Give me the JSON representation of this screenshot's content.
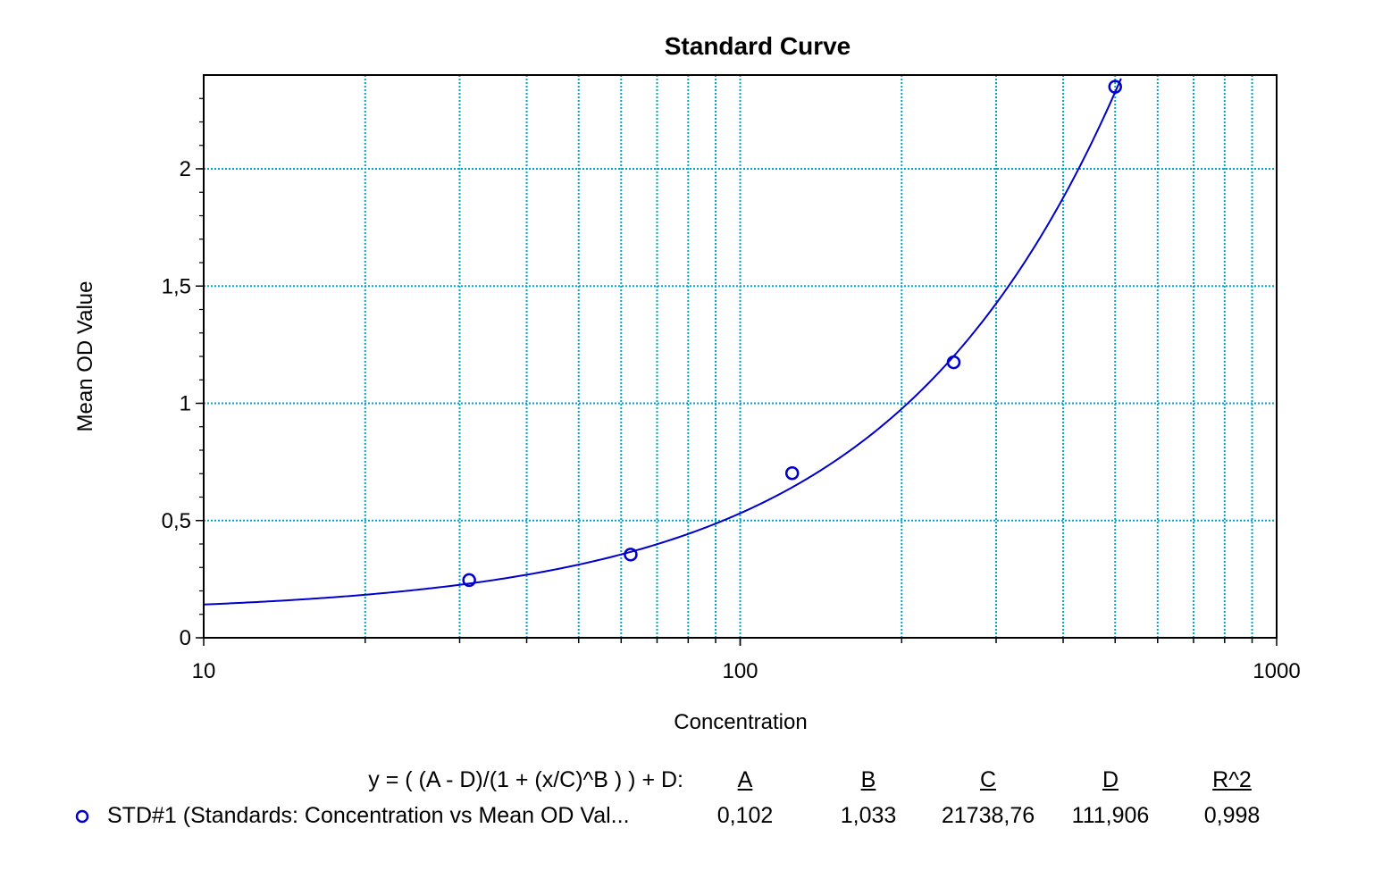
{
  "chart_data": {
    "type": "scatter",
    "title": "Standard Curve",
    "xlabel": "Concentration",
    "ylabel": "Mean OD Value",
    "x_scale": "log",
    "xlim": [
      10,
      1000
    ],
    "ylim": [
      0,
      2.4
    ],
    "x_ticks": [
      {
        "value": 10,
        "label": "10"
      },
      {
        "value": 100,
        "label": "100"
      },
      {
        "value": 1000,
        "label": "1000"
      }
    ],
    "y_ticks": [
      {
        "value": 0,
        "label": "0"
      },
      {
        "value": 0.5,
        "label": "0,5"
      },
      {
        "value": 1,
        "label": "1"
      },
      {
        "value": 1.5,
        "label": "1,5"
      },
      {
        "value": 2,
        "label": "2"
      }
    ],
    "grid": true,
    "colors": {
      "series": "#0000cc",
      "grid": "#00a6c8"
    },
    "series": [
      {
        "name": "STD#1 (Standards: Concentration vs Mean OD Val...",
        "points": [
          {
            "x": 31.25,
            "y": 0.246
          },
          {
            "x": 62.5,
            "y": 0.355
          },
          {
            "x": 125,
            "y": 0.702
          },
          {
            "x": 250,
            "y": 1.175
          },
          {
            "x": 500,
            "y": 2.35
          }
        ],
        "fit": {
          "model": "4PL",
          "A": 0.102,
          "B": 1.033,
          "C": 21738.76,
          "D": 111.906,
          "R2": 0.998
        }
      }
    ]
  },
  "fit_table": {
    "formula": "y = ( (A - D)/(1 + (x/C)^B ) ) + D:",
    "headers": [
      "A",
      "B",
      "C",
      "D",
      "R^2"
    ],
    "rows": [
      {
        "label": "STD#1 (Standards: Concentration vs Mean OD Val...",
        "values": [
          "0,102",
          "1,033",
          "21738,76",
          "111,906",
          "0,998"
        ]
      }
    ]
  }
}
